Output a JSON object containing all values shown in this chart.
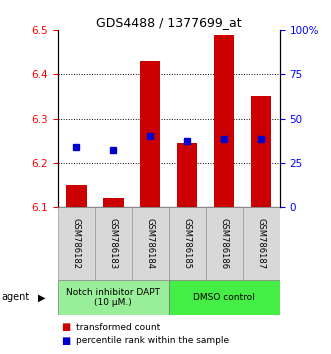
{
  "title": "GDS4488 / 1377699_at",
  "samples": [
    "GSM786182",
    "GSM786183",
    "GSM786184",
    "GSM786185",
    "GSM786186",
    "GSM786187"
  ],
  "bar_bottoms": [
    6.1,
    6.1,
    6.1,
    6.1,
    6.1,
    6.1
  ],
  "bar_tops": [
    6.15,
    6.12,
    6.43,
    6.245,
    6.49,
    6.35
  ],
  "percentile_values": [
    6.235,
    6.23,
    6.26,
    6.25,
    6.255,
    6.255
  ],
  "ylim_left": [
    6.1,
    6.5
  ],
  "ylim_right": [
    0,
    100
  ],
  "yticks_left": [
    6.1,
    6.2,
    6.3,
    6.4,
    6.5
  ],
  "yticks_right_vals": [
    0,
    25,
    50,
    75,
    100
  ],
  "yticks_right_labels": [
    "0",
    "25",
    "50",
    "75",
    "100%"
  ],
  "bar_color": "#cc0000",
  "percentile_color": "#0000cc",
  "bg_color": "#ffffff",
  "agent_groups": [
    {
      "label": "Notch inhibitor DAPT\n(10 μM.)",
      "color": "#99ee99",
      "start": 0,
      "end": 3
    },
    {
      "label": "DMSO control",
      "color": "#44ee44",
      "start": 3,
      "end": 6
    }
  ],
  "legend_bar_label": "transformed count",
  "legend_pct_label": "percentile rank within the sample",
  "bar_width": 0.55,
  "dotted_grid_lines": [
    6.2,
    6.3,
    6.4
  ]
}
